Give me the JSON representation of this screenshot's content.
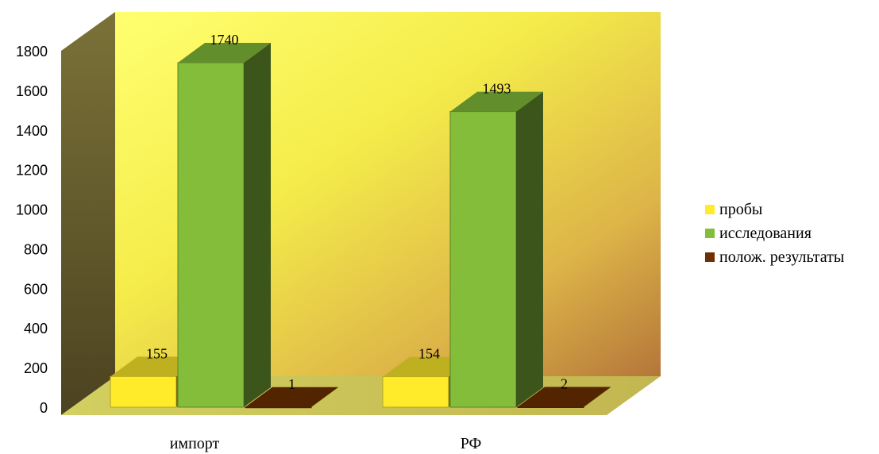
{
  "chart_data": {
    "type": "bar",
    "style": "3d-clustered",
    "categories": [
      "импорт",
      "РФ"
    ],
    "series": [
      {
        "name": "пробы",
        "values": [
          155,
          154
        ],
        "color": "#FFEB2A"
      },
      {
        "name": "исследования",
        "values": [
          1740,
          1493
        ],
        "color": "#84BD3A"
      },
      {
        "name": "полож. результаты",
        "values": [
          1,
          2
        ],
        "color": "#6E3000"
      }
    ],
    "y_ticks": [
      "0",
      "200",
      "400",
      "600",
      "800",
      "1000",
      "1200",
      "1400",
      "1600",
      "1800"
    ],
    "ylim": [
      0,
      1800
    ],
    "title": "",
    "xlabel": "",
    "ylabel": "",
    "legend_position": "right",
    "colors": {
      "back_wall_light": "#FFFF7A",
      "back_wall_dark": "#B87A38",
      "side_wall": "#6B6630",
      "floor": "#C9C95A"
    }
  }
}
